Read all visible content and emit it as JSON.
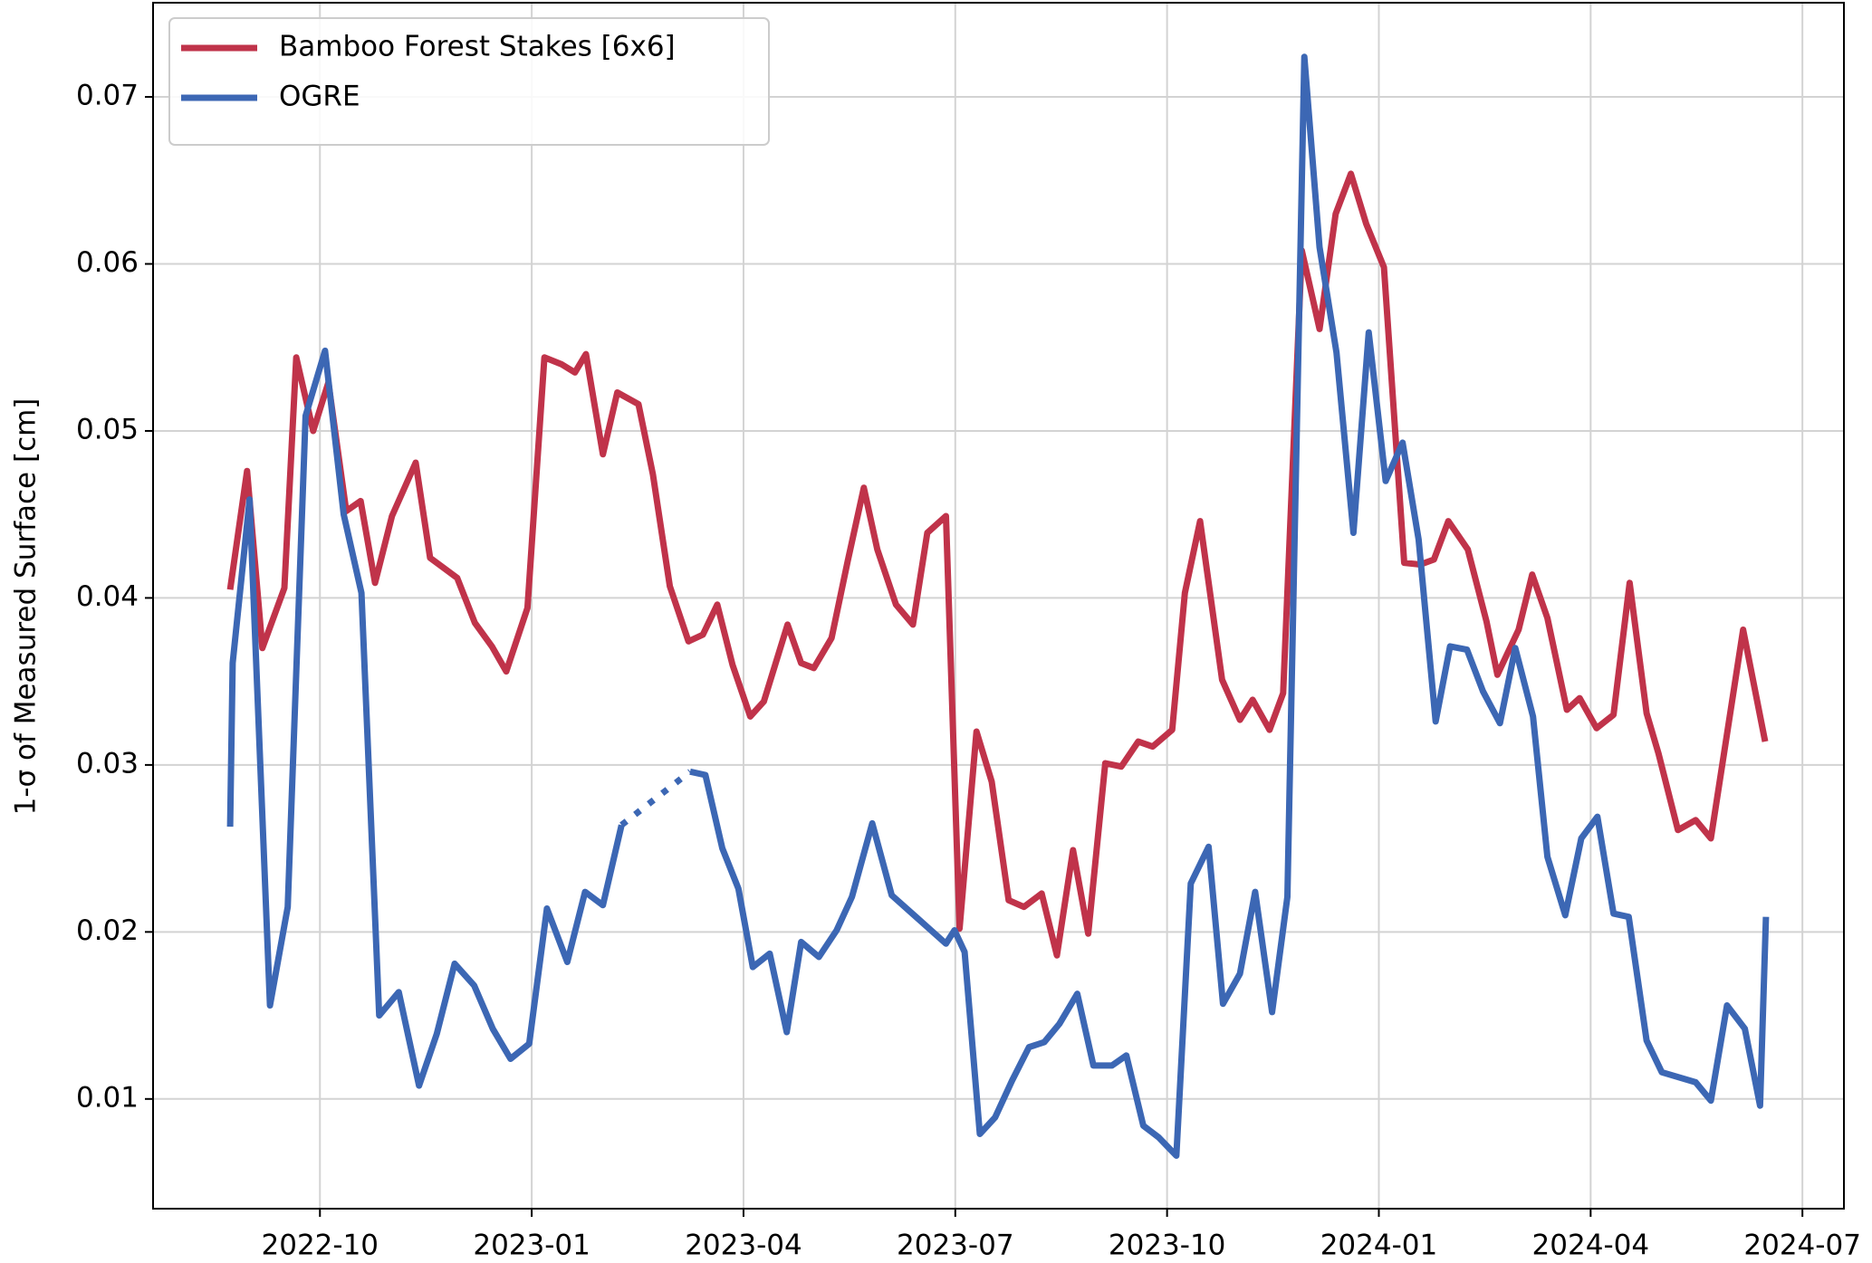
{
  "chart_data": {
    "type": "line",
    "ylabel": "1-σ of Measured Surface [cm]",
    "xlim": [
      2022.553,
      2024.549
    ],
    "xticks": [
      {
        "value": 2022.75,
        "label": "2022-10"
      },
      {
        "value": 2023.0,
        "label": "2023-01"
      },
      {
        "value": 2023.25,
        "label": "2023-04"
      },
      {
        "value": 2023.5,
        "label": "2023-07"
      },
      {
        "value": 2023.75,
        "label": "2023-10"
      },
      {
        "value": 2024.0,
        "label": "2024-01"
      },
      {
        "value": 2024.25,
        "label": "2024-04"
      },
      {
        "value": 2024.5,
        "label": "2024-07"
      }
    ],
    "ylim": [
      0.00343,
      0.07564
    ],
    "yticks": [
      0.01,
      0.02,
      0.03,
      0.04,
      0.05,
      0.06,
      0.07
    ],
    "grid": true,
    "legend": "upper left",
    "series": [
      {
        "name": "Bamboo Forest Stakes [6x6]",
        "color": "#c0334a",
        "x": [
          2022.644,
          2022.664,
          2022.682,
          2022.708,
          2022.722,
          2022.742,
          2022.76,
          2022.781,
          2022.798,
          2022.815,
          2022.835,
          2022.863,
          2022.88,
          2022.896,
          2022.912,
          2022.933,
          2022.953,
          2022.97,
          2022.995,
          2023.015,
          2023.035,
          2023.051,
          2023.064,
          2023.084,
          2023.101,
          2023.126,
          2023.143,
          2023.163,
          2023.185,
          2023.202,
          2023.219,
          2023.237,
          2023.258,
          2023.274,
          2023.302,
          2023.318,
          2023.333,
          2023.354,
          2023.373,
          2023.392,
          2023.408,
          2023.43,
          2023.45,
          2023.467,
          2023.489,
          2023.505,
          2023.525,
          2023.543,
          2023.563,
          2023.581,
          2023.602,
          2023.62,
          2023.639,
          2023.657,
          2023.677,
          2023.696,
          2023.716,
          2023.733,
          2023.756,
          2023.771,
          2023.789,
          2023.815,
          2023.836,
          2023.851,
          2023.871,
          2023.887,
          2023.909,
          2023.93,
          2023.949,
          2023.967,
          2023.985,
          2024.006,
          2024.03,
          2024.049,
          2024.065,
          2024.082,
          2024.105,
          2024.127,
          2024.14,
          2024.165,
          2024.181,
          2024.199,
          2024.222,
          2024.237,
          2024.257,
          2024.277,
          2024.296,
          2024.316,
          2024.33,
          2024.353,
          2024.374,
          2024.392,
          2024.43,
          2024.456
        ],
        "values": [
          0.0405,
          0.0476,
          0.037,
          0.0406,
          0.0544,
          0.05,
          0.0529,
          0.0452,
          0.0458,
          0.0409,
          0.0449,
          0.0481,
          0.0424,
          0.0418,
          0.0412,
          0.0385,
          0.0371,
          0.0356,
          0.0394,
          0.0544,
          0.054,
          0.0535,
          0.0546,
          0.0486,
          0.0523,
          0.0516,
          0.0474,
          0.0407,
          0.0374,
          0.0378,
          0.0396,
          0.036,
          0.0329,
          0.0338,
          0.0384,
          0.0361,
          0.0358,
          0.0376,
          0.0422,
          0.0466,
          0.0429,
          0.0396,
          0.0384,
          0.0439,
          0.0449,
          0.0202,
          0.032,
          0.029,
          0.0219,
          0.0215,
          0.0223,
          0.0186,
          0.0249,
          0.0199,
          0.0301,
          0.0299,
          0.0314,
          0.0311,
          0.0321,
          0.0403,
          0.0446,
          0.0351,
          0.0327,
          0.0339,
          0.0321,
          0.0343,
          0.0608,
          0.0561,
          0.063,
          0.0654,
          0.0624,
          0.0598,
          0.0421,
          0.042,
          0.0423,
          0.0446,
          0.0429,
          0.0386,
          0.0354,
          0.0381,
          0.0414,
          0.0388,
          0.0333,
          0.034,
          0.0322,
          0.033,
          0.0409,
          0.0331,
          0.0307,
          0.0261,
          0.0267,
          0.0256,
          0.0381,
          0.0314
        ]
      },
      {
        "name": "OGRE",
        "color": "#3c67b4",
        "x": [
          2022.644,
          2022.647,
          2022.667,
          2022.691,
          2022.712,
          2022.733,
          2022.756,
          2022.778,
          2022.799,
          2022.82,
          2022.843,
          2022.867,
          2022.888,
          2022.909,
          2022.932,
          2022.954,
          2022.975,
          2022.997,
          2023.018,
          2023.042,
          2023.063,
          2023.084,
          2023.106,
          2023.146,
          2023.187,
          2023.205,
          2023.225,
          2023.244,
          2023.261,
          2023.281,
          2023.301,
          2023.318,
          2023.339,
          2023.36,
          2023.378,
          2023.402,
          2023.425,
          2023.489,
          2023.499,
          2023.511,
          2023.529,
          2023.547,
          2023.567,
          2023.587,
          2023.605,
          2023.623,
          2023.644,
          2023.663,
          2023.685,
          2023.702,
          2023.722,
          2023.74,
          2023.761,
          2023.778,
          2023.799,
          2023.816,
          2023.836,
          2023.854,
          2023.874,
          2023.892,
          2023.912,
          2023.93,
          2023.95,
          2023.97,
          2023.988,
          2024.008,
          2024.028,
          2024.047,
          2024.067,
          2024.084,
          2024.104,
          2024.123,
          2024.143,
          2024.161,
          2024.182,
          2024.199,
          2024.22,
          2024.239,
          2024.258,
          2024.277,
          2024.295,
          2024.316,
          2024.334,
          2024.374,
          2024.392,
          2024.411,
          2024.432,
          2024.45,
          2024.457
        ],
        "values": [
          0.0263,
          0.0361,
          0.0459,
          0.0156,
          0.0215,
          0.0509,
          0.0548,
          0.045,
          0.0403,
          0.015,
          0.0164,
          0.0108,
          0.0139,
          0.0181,
          0.0168,
          0.0142,
          0.0124,
          0.0133,
          0.0214,
          0.0182,
          0.0224,
          0.0216,
          0.0264,
          null,
          0.0296,
          0.0294,
          0.025,
          0.0226,
          0.0179,
          0.0187,
          0.014,
          0.0194,
          0.0185,
          0.0201,
          0.0221,
          0.0265,
          0.0222,
          0.0193,
          0.0201,
          0.0188,
          0.0079,
          0.0089,
          0.0111,
          0.0131,
          0.0134,
          0.0145,
          0.0163,
          0.012,
          0.012,
          0.0126,
          0.0084,
          0.0077,
          0.0066,
          0.0229,
          0.0251,
          0.0157,
          0.0175,
          0.0224,
          0.0152,
          0.0221,
          0.0724,
          0.061,
          0.0547,
          0.0439,
          0.0559,
          0.047,
          0.0493,
          0.0435,
          0.0326,
          0.0371,
          0.0369,
          0.0344,
          0.0325,
          0.037,
          0.0329,
          0.0245,
          0.021,
          0.0256,
          0.0269,
          0.0211,
          0.0209,
          0.0135,
          0.0116,
          0.011,
          0.0099,
          0.0156,
          0.0142,
          0.0096,
          0.0209
        ]
      }
    ]
  }
}
